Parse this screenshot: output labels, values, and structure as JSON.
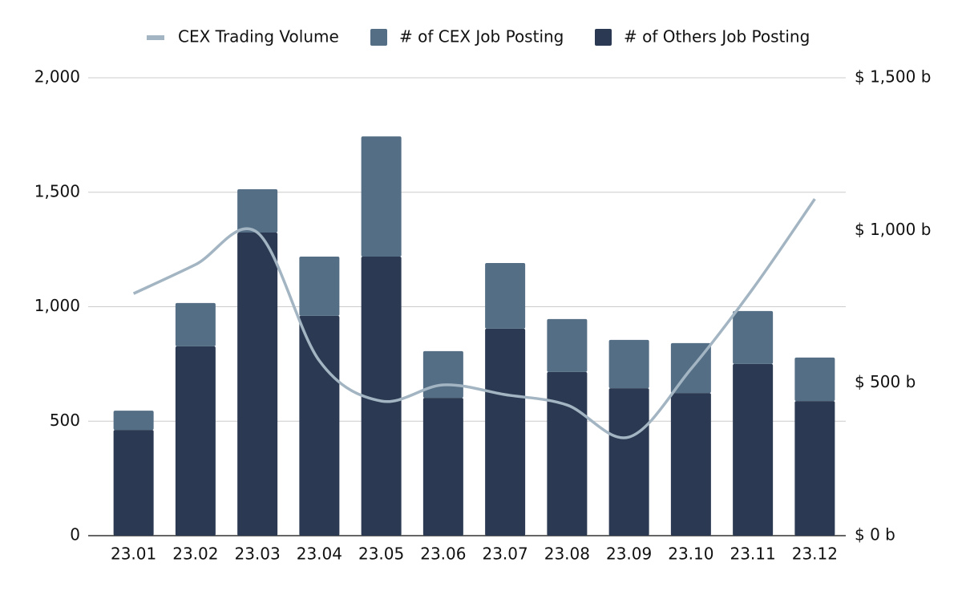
{
  "chart_data": {
    "type": "bar_line",
    "categories": [
      "23.01",
      "23.02",
      "23.03",
      "23.04",
      "23.05",
      "23.06",
      "23.07",
      "23.08",
      "23.09",
      "23.10",
      "23.11",
      "23.12"
    ],
    "series": [
      {
        "name": "CEX Trading Volume",
        "type": "line",
        "axis": "y2",
        "color": "#a3b5c2",
        "values": [
          793,
          888,
          993,
          573,
          441,
          494,
          462,
          428,
          323,
          546,
          809,
          1103
        ]
      },
      {
        "name": "# of CEX Job Posting",
        "type": "bar",
        "color": "#546e85",
        "values": [
          84,
          189,
          189,
          259,
          525,
          204,
          287,
          231,
          211,
          218,
          231,
          190
        ]
      },
      {
        "name": "# of Others Job Posting",
        "type": "bar",
        "color": "#2b3a52",
        "values": [
          462,
          827,
          1324,
          960,
          1219,
          602,
          904,
          715,
          644,
          623,
          750,
          588
        ]
      }
    ],
    "ylim": [
      0,
      2000
    ],
    "yticks": [
      0,
      500,
      {
        "value": 1000,
        "label": "1,000"
      },
      {
        "value": 1500,
        "label": "1,500"
      },
      {
        "value": 2000,
        "label": "2,000"
      }
    ],
    "y2lim": [
      0,
      1500
    ],
    "y2ticks": [
      {
        "value": 0,
        "label": "$ 0 b"
      },
      {
        "value": 500,
        "label": "$ 500 b"
      },
      {
        "value": 1000,
        "label": "$ 1,000 b"
      },
      {
        "value": 1500,
        "label": "$ 1,500 b"
      }
    ],
    "grid": true,
    "stacked": true,
    "legend": "top"
  }
}
